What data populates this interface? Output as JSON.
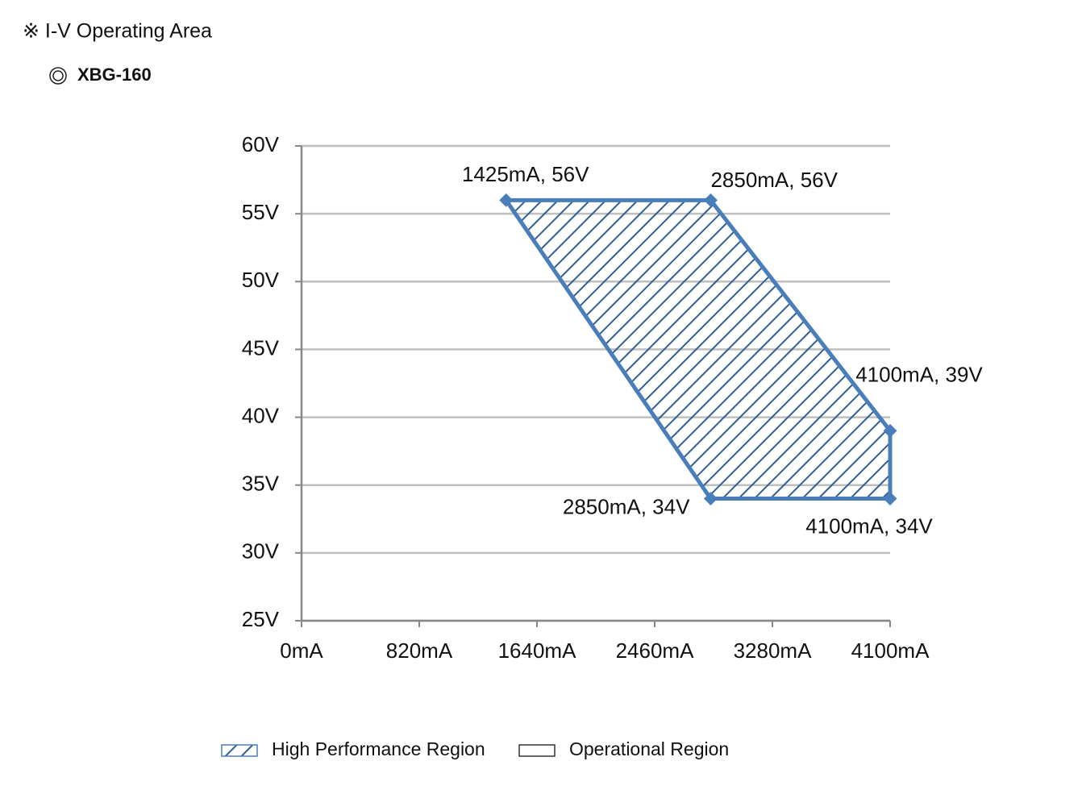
{
  "chart_data": {
    "type": "area",
    "title": "※ I-V Operating Area",
    "subtitle": "XBG-160",
    "xlim": [
      0,
      4100
    ],
    "xticks": [
      {
        "value": 0,
        "label": "0mA"
      },
      {
        "value": 820,
        "label": "820mA"
      },
      {
        "value": 1640,
        "label": "1640mA"
      },
      {
        "value": 2460,
        "label": "2460mA"
      },
      {
        "value": 3280,
        "label": "3280mA"
      },
      {
        "value": 4100,
        "label": "4100mA"
      }
    ],
    "ylim": [
      25,
      60
    ],
    "yticks": [
      {
        "value": 25,
        "label": "25V"
      },
      {
        "value": 30,
        "label": "30V"
      },
      {
        "value": 35,
        "label": "35V"
      },
      {
        "value": 40,
        "label": "40V"
      },
      {
        "value": 45,
        "label": "45V"
      },
      {
        "value": 50,
        "label": "50V"
      },
      {
        "value": 55,
        "label": "55V"
      },
      {
        "value": 60,
        "label": "60V"
      }
    ],
    "grid": true,
    "series": [
      {
        "name": "High Performance Region",
        "color": "#4a7ebb",
        "x": [
          1425,
          2850,
          4100,
          4100,
          2850
        ],
        "values": [
          56,
          56,
          39,
          34,
          34
        ],
        "value_labels": [
          "1425mA, 56V",
          "2850mA, 56V",
          "4100mA, 39V",
          "4100mA, 34V",
          "2850mA, 34V"
        ]
      },
      {
        "name": "Operational Region",
        "color": "#ffffff",
        "x": [],
        "values": []
      }
    ]
  }
}
